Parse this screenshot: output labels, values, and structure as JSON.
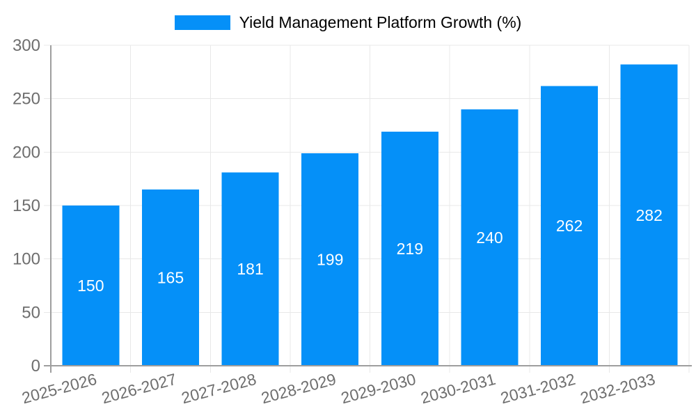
{
  "chart_data": {
    "type": "bar",
    "title": "",
    "series_name": "Yield Management Platform Growth (%)",
    "categories": [
      "2025-2026",
      "2026-2027",
      "2027-2028",
      "2028-2029",
      "2029-2030",
      "2030-2031",
      "2031-2032",
      "2032-2033"
    ],
    "values": [
      150,
      165,
      181,
      199,
      219,
      240,
      262,
      282
    ],
    "xlabel": "",
    "ylabel": "",
    "ylim": [
      0,
      300
    ],
    "ytick_step": 50,
    "ytick_labels": [
      "0",
      "50",
      "100",
      "150",
      "200",
      "250",
      "300"
    ],
    "grid": true,
    "grid_vertical_at_category_boundaries": true,
    "legend_position": "top-center",
    "value_labels_inside_bars": true,
    "x_label_rotation_deg": -15,
    "colors": {
      "bar": "#0590f8",
      "grid": "#e8e8e8",
      "axis": "#9e9e9e",
      "text": "#6e6e6e",
      "value_label": "#ffffff",
      "background": "#ffffff"
    }
  }
}
